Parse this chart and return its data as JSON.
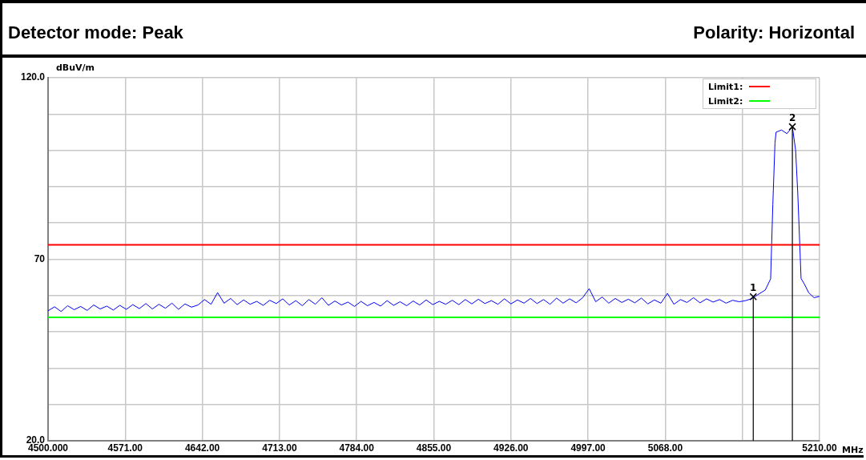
{
  "chart_data": {
    "type": "line",
    "title": "Detector mode: Peak",
    "subtitle": "Polarity: Horizontal",
    "ylabel": "dBuV/m",
    "xlabel": "MHz",
    "xlim": [
      4500,
      5210
    ],
    "xticks": [
      {
        "value": 4500,
        "label": "4500.000"
      },
      {
        "value": 4571,
        "label": "4571.00"
      },
      {
        "value": 4642,
        "label": "4642.00"
      },
      {
        "value": 4713,
        "label": "4713.00"
      },
      {
        "value": 4784,
        "label": "4784.00"
      },
      {
        "value": 4855,
        "label": "4855.00"
      },
      {
        "value": 4926,
        "label": "4926.00"
      },
      {
        "value": 4997,
        "label": "4997.00"
      },
      {
        "value": 5068,
        "label": "5068.00"
      },
      {
        "value": 5139,
        "label": null
      },
      {
        "value": 5210,
        "label": "5210.00"
      }
    ],
    "ylim": [
      20,
      120
    ],
    "yticks": [
      {
        "value": 20,
        "label": "20.0"
      },
      {
        "value": 30,
        "label": null
      },
      {
        "value": 40,
        "label": null
      },
      {
        "value": 50,
        "label": null
      },
      {
        "value": 60,
        "label": null
      },
      70,
      {
        "value": 80,
        "label": null
      },
      {
        "value": 90,
        "label": null
      },
      {
        "value": 100,
        "label": null
      },
      {
        "value": 110,
        "label": null
      },
      {
        "value": 120,
        "label": "120.0"
      }
    ],
    "grid": true,
    "legend": "top right",
    "marker": "none",
    "line_style": "solid",
    "ref_lines": [
      {
        "axis": "y",
        "value": 74,
        "label": "Limit1:",
        "color": "#ff0000"
      },
      {
        "axis": "y",
        "value": 54,
        "label": "Limit2:",
        "color": "#00ff00"
      },
      {
        "axis": "x",
        "value": 5149,
        "color": "#000000"
      },
      {
        "axis": "x",
        "value": 5185,
        "color": "#000000"
      }
    ],
    "annotations": [
      {
        "text": "1",
        "x": 5149,
        "y": 59.7
      },
      {
        "text": "2",
        "x": 5185,
        "y": 106.5
      }
    ],
    "series": [
      {
        "color": "#0000ff",
        "x": [
          4500,
          4506,
          4512,
          4518,
          4524,
          4530,
          4536,
          4542,
          4548,
          4554,
          4560,
          4566,
          4572,
          4578,
          4584,
          4590,
          4596,
          4602,
          4608,
          4614,
          4620,
          4626,
          4632,
          4638,
          4644,
          4650,
          4656,
          4662,
          4668,
          4674,
          4680,
          4686,
          4692,
          4698,
          4704,
          4710,
          4716,
          4722,
          4728,
          4734,
          4740,
          4746,
          4752,
          4758,
          4764,
          4770,
          4776,
          4782,
          4788,
          4794,
          4800,
          4806,
          4812,
          4818,
          4824,
          4830,
          4836,
          4842,
          4848,
          4854,
          4860,
          4866,
          4872,
          4878,
          4884,
          4890,
          4896,
          4902,
          4908,
          4914,
          4920,
          4926,
          4932,
          4938,
          4944,
          4950,
          4956,
          4962,
          4968,
          4974,
          4980,
          4986,
          4992,
          4998,
          5004,
          5010,
          5016,
          5022,
          5028,
          5034,
          5040,
          5046,
          5052,
          5058,
          5064,
          5070,
          5076,
          5082,
          5088,
          5094,
          5100,
          5106,
          5112,
          5118,
          5124,
          5130,
          5136,
          5142,
          5148,
          5154,
          5160,
          5165,
          5167,
          5169,
          5170,
          5175,
          5180,
          5185,
          5188,
          5190,
          5193,
          5196,
          5200,
          5205,
          5210
        ],
        "values": [
          55.8,
          56.9,
          55.6,
          57.2,
          56.1,
          57.0,
          55.9,
          57.4,
          56.3,
          57.1,
          56.0,
          57.3,
          56.2,
          57.5,
          56.4,
          57.8,
          56.3,
          57.6,
          56.5,
          57.9,
          56.2,
          57.7,
          56.8,
          57.4,
          58.9,
          57.6,
          60.8,
          57.9,
          59.2,
          57.5,
          58.8,
          57.6,
          58.4,
          57.3,
          58.7,
          57.8,
          59.1,
          57.4,
          58.6,
          57.2,
          58.9,
          57.6,
          59.4,
          57.3,
          58.5,
          57.4,
          58.2,
          57.0,
          58.4,
          57.2,
          58.1,
          57.1,
          58.6,
          57.3,
          58.3,
          57.2,
          58.5,
          57.4,
          58.8,
          57.5,
          58.4,
          57.6,
          58.7,
          57.5,
          58.9,
          57.7,
          59.0,
          57.8,
          58.6,
          57.6,
          59.1,
          57.7,
          58.8,
          57.9,
          59.2,
          57.8,
          58.9,
          57.6,
          59.3,
          57.9,
          59.1,
          58.0,
          59.4,
          61.9,
          58.3,
          59.6,
          57.9,
          59.2,
          58.1,
          59.0,
          58.0,
          59.3,
          57.7,
          58.8,
          57.9,
          60.6,
          57.6,
          58.9,
          58.1,
          59.4,
          58.0,
          59.1,
          58.2,
          58.9,
          57.9,
          58.7,
          58.3,
          58.6,
          59.2,
          60.4,
          61.5,
          64.6,
          85,
          102,
          105,
          105.6,
          104.6,
          106.5,
          100,
          88,
          64.7,
          63.2,
          60.8,
          59.4,
          59.8
        ]
      }
    ]
  }
}
